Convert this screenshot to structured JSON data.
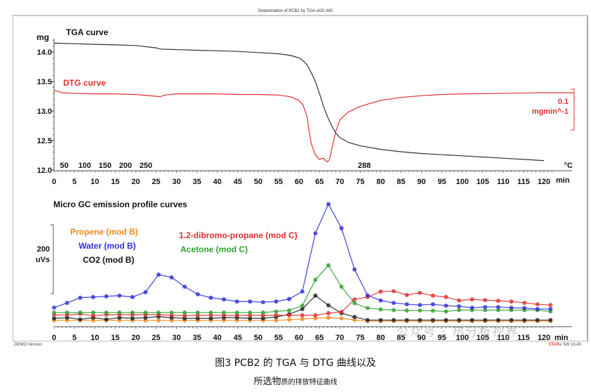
{
  "header": {
    "title": "Delamination of PCB2 by TGA-uGC-MS"
  },
  "footer": {
    "left": "DEMO Version",
    "right_brand": "STAR",
    "right_rest": "e SW 16.40"
  },
  "caption": {
    "line1": "图3  PCB2 的 TGA 与 DTG 曲线以及",
    "line2_main": "所选物",
    "line2_small": "质的排放特征曲线"
  },
  "watermark": "公众号 · 热分析视界",
  "chart_data": [
    {
      "type": "line",
      "title": "",
      "xlabel": "min",
      "ylabel": "mg",
      "x_ticks": [
        0,
        5,
        10,
        15,
        20,
        25,
        30,
        35,
        40,
        45,
        50,
        55,
        60,
        65,
        70,
        75,
        80,
        85,
        90,
        95,
        100,
        105,
        110,
        115,
        120
      ],
      "x_range": [
        0,
        122
      ],
      "y_ticks": [
        "12.0",
        "12.5",
        "13.0",
        "13.5",
        "14.0"
      ],
      "y_range": [
        11.95,
        14.3
      ],
      "grid": false,
      "temperature_labels": {
        "unit": "°C",
        "items": [
          {
            "t": 2.5,
            "label": "50"
          },
          {
            "t": 7.5,
            "label": "100"
          },
          {
            "t": 12.5,
            "label": "150"
          },
          {
            "t": 17.5,
            "label": "200"
          },
          {
            "t": 22.5,
            "label": "250"
          },
          {
            "t": 76,
            "label": "288"
          }
        ]
      },
      "series": [
        {
          "name": "TGA curve",
          "color": "#333333",
          "label_color": "#111111",
          "x": [
            0,
            5,
            10,
            15,
            20,
            25,
            26,
            30,
            35,
            40,
            45,
            50,
            55,
            58,
            60,
            61,
            62,
            63,
            64,
            65,
            66,
            67,
            68,
            69,
            70,
            72,
            75,
            80,
            85,
            90,
            95,
            100,
            105,
            110,
            115,
            120
          ],
          "y": [
            14.15,
            14.14,
            14.13,
            14.12,
            14.11,
            14.07,
            14.05,
            14.04,
            14.03,
            14.02,
            14.01,
            13.99,
            13.97,
            13.94,
            13.9,
            13.85,
            13.78,
            13.65,
            13.5,
            13.3,
            13.08,
            12.9,
            12.75,
            12.63,
            12.55,
            12.47,
            12.41,
            12.35,
            12.31,
            12.28,
            12.26,
            12.24,
            12.22,
            12.2,
            12.18,
            12.16
          ]
        },
        {
          "name": "DTG curve",
          "color": "#e03030",
          "label_color": "#e03030",
          "x": [
            0,
            2,
            5,
            10,
            15,
            20,
            25,
            26,
            27,
            30,
            35,
            40,
            45,
            50,
            55,
            58,
            60,
            61,
            62,
            62.5,
            63,
            64,
            65,
            65.5,
            66,
            66.5,
            67,
            67.5,
            68,
            69,
            70,
            72,
            75,
            80,
            85,
            90,
            95,
            100,
            110,
            120
          ],
          "y": [
            13.35,
            13.31,
            13.3,
            13.29,
            13.29,
            13.28,
            13.25,
            13.24,
            13.27,
            13.29,
            13.29,
            13.29,
            13.28,
            13.28,
            13.27,
            13.24,
            13.18,
            13.1,
            12.9,
            12.65,
            12.45,
            12.26,
            12.18,
            12.19,
            12.2,
            12.16,
            12.14,
            12.18,
            12.35,
            12.65,
            12.85,
            12.98,
            13.08,
            13.18,
            13.23,
            13.26,
            13.28,
            13.29,
            13.3,
            13.31
          ]
        }
      ],
      "annotations": {
        "dtg_scale": "0.1",
        "dtg_unit": "mgmin^-1"
      }
    },
    {
      "type": "line",
      "title": "Micro GC emission profile curves",
      "xlabel": "min",
      "ylabel": "uVs",
      "scale_bar": {
        "value": "200",
        "unit": "uVs"
      },
      "x_ticks": [
        0,
        5,
        10,
        15,
        20,
        25,
        30,
        35,
        40,
        45,
        50,
        55,
        60,
        65,
        70,
        75,
        80,
        85,
        90,
        95,
        100,
        105,
        110,
        115,
        120
      ],
      "x_range": [
        0,
        122
      ],
      "y_range": [
        0,
        360
      ],
      "grid": false,
      "x": [
        0,
        3.2,
        6.4,
        9.6,
        12.8,
        16,
        19.2,
        22.4,
        25.6,
        28.8,
        32,
        35.2,
        38.4,
        41.6,
        44.8,
        48,
        51.2,
        54.4,
        57.6,
        60.8,
        64,
        67.2,
        70.4,
        73.6,
        76.8,
        80,
        83.2,
        86.4,
        89.6,
        92.8,
        96,
        99.2,
        102.4,
        105.6,
        108.8,
        112,
        115.2,
        118.4,
        121.6
      ],
      "series": [
        {
          "name": "Water (mod B)",
          "color": "#3030d8",
          "y": [
            49,
            63,
            78,
            80,
            82,
            84,
            80,
            94,
            145,
            137,
            110,
            88,
            78,
            73,
            67,
            67,
            65,
            67,
            74,
            96,
            265,
            350,
            280,
            160,
            85,
            70,
            63,
            59,
            57,
            59,
            55,
            53,
            49,
            51,
            51,
            49,
            48,
            45,
            45
          ]
        },
        {
          "name": "Acetone (mod C)",
          "color": "#30a030",
          "y": [
            35,
            35,
            35,
            35,
            35,
            35,
            35,
            35,
            35,
            35,
            35,
            35,
            35,
            35,
            35,
            35,
            35,
            38,
            41,
            55,
            130,
            172,
            110,
            62,
            48,
            44,
            42,
            41,
            41,
            40,
            38,
            42,
            42,
            42,
            42,
            42,
            42,
            42,
            38
          ]
        },
        {
          "name": "1.2-dibromo-propane (mod C)",
          "color": "#e03030",
          "y": [
            28,
            28,
            31,
            26,
            29,
            29,
            29,
            29,
            29,
            27,
            26,
            27,
            27,
            27,
            27,
            27,
            27,
            27,
            27,
            27,
            27,
            33,
            37,
            73,
            80,
            96,
            97,
            86,
            92,
            84,
            80,
            70,
            73,
            71,
            69,
            67,
            63,
            59,
            57
          ]
        },
        {
          "name": "CO2 (mod B)",
          "color": "#222222",
          "y": [
            18,
            20,
            15,
            20,
            15,
            20,
            18,
            20,
            23,
            20,
            18,
            18,
            18,
            20,
            20,
            18,
            18,
            22,
            30,
            45,
            84,
            56,
            33,
            22,
            13,
            13,
            13,
            13,
            13,
            13,
            13,
            13,
            13,
            13,
            13,
            13,
            13,
            13,
            13
          ]
        },
        {
          "name": "Propene (mod B)",
          "color": "#f08a20",
          "y": [
            12,
            12,
            12,
            12,
            12,
            12,
            12,
            12,
            12,
            12,
            12,
            12,
            12,
            12,
            12,
            12,
            12,
            12,
            14,
            16,
            18,
            20,
            18,
            13,
            10,
            10,
            10,
            10,
            10,
            10,
            10,
            10,
            10,
            10,
            10,
            10,
            10,
            10,
            10
          ]
        }
      ]
    }
  ]
}
